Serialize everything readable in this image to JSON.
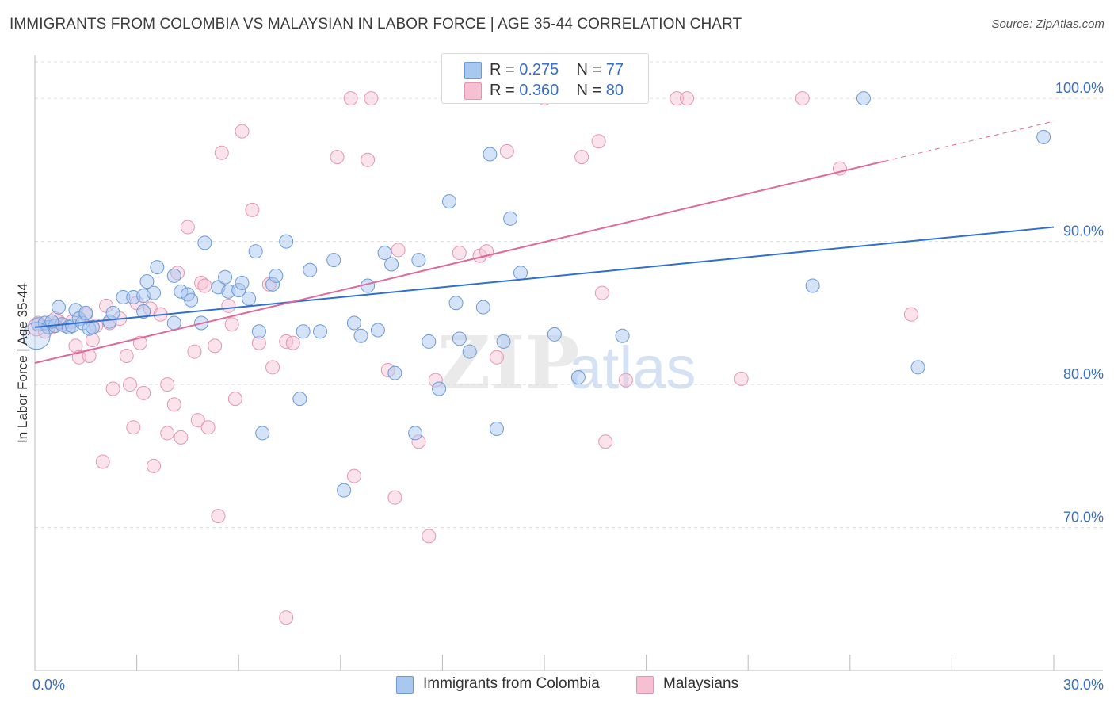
{
  "title": "IMMIGRANTS FROM COLOMBIA VS MALAYSIAN IN LABOR FORCE | AGE 35-44 CORRELATION CHART",
  "source": "Source: ZipAtlas.com",
  "watermark": {
    "zip": "ZIP",
    "atlas": "atlas"
  },
  "legend_top": [
    {
      "r_label": "R =",
      "r_value": "0.275",
      "n_label": "N =",
      "n_value": "77"
    },
    {
      "r_label": "R =",
      "r_value": "0.360",
      "n_label": "N =",
      "n_value": "80"
    }
  ],
  "legend_bottom": [
    "Immigrants from Colombia",
    "Malaysians"
  ],
  "colors": {
    "blue_fill": "#a9c8f0",
    "blue_stroke": "#6b9ad8",
    "blue_line": "#2f6fcf",
    "pink_fill": "#f6c0d2",
    "pink_stroke": "#e595b3",
    "pink_line": "#e0689a",
    "tick_label": "#3a6fc4",
    "grid": "#dddddd"
  },
  "chart_data": {
    "type": "scatter",
    "title": "IMMIGRANTS FROM COLOMBIA VS MALAYSIAN IN LABOR FORCE | AGE 35-44 CORRELATION CHART",
    "xlabel": "",
    "ylabel": "In Labor Force | Age 35-44",
    "xlim": [
      0,
      30
    ],
    "ylim": [
      60,
      103
    ],
    "x_tick_labels": [
      "0.0%",
      "30.0%"
    ],
    "y_ticks": [
      70,
      80,
      90,
      100
    ],
    "y_tick_labels": [
      "70.0%",
      "80.0%",
      "90.0%",
      "100.0%"
    ],
    "series": [
      {
        "name": "Immigrants from Colombia",
        "R": 0.275,
        "N": 77,
        "trend": {
          "x0": 0,
          "y0": 84.0,
          "x1": 30,
          "y1": 91.0
        },
        "points": [
          [
            0.1,
            84.2
          ],
          [
            0.3,
            84.3
          ],
          [
            0.4,
            84.0
          ],
          [
            0.6,
            84.1
          ],
          [
            0.8,
            84.2
          ],
          [
            1.0,
            84.0
          ],
          [
            1.1,
            84.1
          ],
          [
            1.2,
            85.2
          ],
          [
            1.3,
            84.6
          ],
          [
            1.4,
            84.3
          ],
          [
            1.6,
            83.9
          ],
          [
            1.7,
            84.0
          ],
          [
            0.5,
            84.4
          ],
          [
            0.7,
            85.4
          ],
          [
            1.5,
            85.0
          ],
          [
            2.2,
            84.4
          ],
          [
            2.3,
            85.0
          ],
          [
            2.6,
            86.1
          ],
          [
            2.9,
            86.1
          ],
          [
            3.2,
            86.2
          ],
          [
            3.3,
            87.2
          ],
          [
            3.5,
            86.4
          ],
          [
            3.2,
            85.1
          ],
          [
            3.6,
            88.2
          ],
          [
            4.1,
            84.3
          ],
          [
            4.1,
            87.6
          ],
          [
            4.3,
            86.5
          ],
          [
            4.5,
            86.3
          ],
          [
            4.6,
            85.9
          ],
          [
            4.9,
            84.3
          ],
          [
            5.0,
            89.9
          ],
          [
            5.4,
            86.8
          ],
          [
            5.6,
            87.5
          ],
          [
            5.7,
            86.5
          ],
          [
            6.0,
            86.6
          ],
          [
            6.1,
            87.1
          ],
          [
            6.3,
            86.0
          ],
          [
            6.5,
            89.3
          ],
          [
            6.6,
            83.7
          ],
          [
            6.7,
            76.6
          ],
          [
            7.0,
            87.0
          ],
          [
            7.1,
            87.6
          ],
          [
            7.4,
            90.0
          ],
          [
            7.8,
            79.0
          ],
          [
            7.9,
            83.7
          ],
          [
            8.1,
            88.0
          ],
          [
            8.4,
            83.7
          ],
          [
            8.8,
            88.7
          ],
          [
            9.1,
            72.6
          ],
          [
            9.4,
            84.3
          ],
          [
            9.6,
            83.4
          ],
          [
            9.8,
            86.9
          ],
          [
            10.1,
            83.8
          ],
          [
            10.3,
            89.2
          ],
          [
            10.5,
            88.4
          ],
          [
            10.6,
            80.8
          ],
          [
            11.2,
            76.6
          ],
          [
            11.3,
            88.7
          ],
          [
            11.6,
            83.0
          ],
          [
            11.9,
            79.7
          ],
          [
            12.2,
            92.8
          ],
          [
            12.4,
            85.7
          ],
          [
            12.5,
            83.2
          ],
          [
            12.8,
            82.3
          ],
          [
            13.2,
            85.4
          ],
          [
            13.4,
            96.1
          ],
          [
            13.6,
            76.9
          ],
          [
            13.8,
            83.0
          ],
          [
            14.0,
            91.6
          ],
          [
            14.3,
            87.8
          ],
          [
            15.3,
            83.5
          ],
          [
            16.0,
            80.5
          ],
          [
            17.3,
            83.4
          ],
          [
            22.9,
            86.9
          ],
          [
            24.4,
            100.0
          ],
          [
            26.0,
            81.2
          ],
          [
            29.7,
            97.3
          ]
        ]
      },
      {
        "name": "Malaysians",
        "R": 0.36,
        "N": 80,
        "trend": {
          "x0": 0,
          "y0": 81.5,
          "x1": 25.0,
          "y1": 95.6
        },
        "trend_ext": {
          "x0": 25.0,
          "y0": 95.6,
          "x1": 30,
          "y1": 98.4
        },
        "points": [
          [
            0.1,
            84.3
          ],
          [
            0.3,
            83.7
          ],
          [
            0.5,
            84.0
          ],
          [
            0.7,
            84.4
          ],
          [
            0.9,
            84.1
          ],
          [
            1.1,
            84.4
          ],
          [
            1.2,
            82.7
          ],
          [
            1.3,
            81.9
          ],
          [
            1.5,
            84.9
          ],
          [
            1.6,
            82.0
          ],
          [
            1.7,
            83.1
          ],
          [
            1.8,
            84.1
          ],
          [
            0.6,
            84.6
          ],
          [
            2.1,
            85.5
          ],
          [
            2.2,
            84.3
          ],
          [
            2.3,
            79.7
          ],
          [
            2.5,
            84.6
          ],
          [
            2.7,
            82.0
          ],
          [
            2.8,
            80.0
          ],
          [
            2.9,
            77.0
          ],
          [
            2.0,
            74.6
          ],
          [
            3.0,
            85.7
          ],
          [
            3.2,
            79.4
          ],
          [
            3.1,
            82.9
          ],
          [
            3.4,
            85.3
          ],
          [
            3.5,
            74.3
          ],
          [
            3.7,
            84.9
          ],
          [
            3.9,
            76.6
          ],
          [
            3.9,
            80.0
          ],
          [
            4.1,
            78.6
          ],
          [
            4.2,
            87.8
          ],
          [
            4.3,
            76.3
          ],
          [
            4.5,
            91.0
          ],
          [
            4.7,
            82.3
          ],
          [
            4.8,
            77.5
          ],
          [
            4.9,
            87.1
          ],
          [
            5.0,
            86.9
          ],
          [
            5.1,
            77.0
          ],
          [
            5.3,
            82.7
          ],
          [
            5.4,
            70.8
          ],
          [
            5.5,
            96.2
          ],
          [
            5.7,
            85.5
          ],
          [
            5.8,
            84.2
          ],
          [
            5.9,
            79.0
          ],
          [
            6.1,
            97.7
          ],
          [
            6.4,
            92.2
          ],
          [
            6.6,
            82.9
          ],
          [
            6.9,
            87.0
          ],
          [
            7.0,
            81.2
          ],
          [
            7.4,
            83.0
          ],
          [
            7.6,
            82.9
          ],
          [
            7.4,
            63.7
          ],
          [
            8.9,
            95.9
          ],
          [
            9.3,
            100.0
          ],
          [
            9.4,
            73.6
          ],
          [
            9.8,
            95.7
          ],
          [
            9.9,
            100.0
          ],
          [
            10.4,
            81.0
          ],
          [
            10.6,
            72.1
          ],
          [
            10.7,
            89.4
          ],
          [
            11.3,
            76.0
          ],
          [
            11.6,
            69.4
          ],
          [
            11.8,
            80.3
          ],
          [
            12.5,
            89.2
          ],
          [
            13.1,
            89.0
          ],
          [
            13.3,
            89.3
          ],
          [
            13.6,
            81.9
          ],
          [
            13.9,
            96.3
          ],
          [
            15.0,
            100.0
          ],
          [
            16.1,
            95.9
          ],
          [
            16.6,
            97.0
          ],
          [
            16.7,
            86.4
          ],
          [
            16.8,
            76.0
          ],
          [
            17.4,
            80.3
          ],
          [
            18.9,
            100.0
          ],
          [
            19.2,
            100.0
          ],
          [
            20.8,
            80.4
          ],
          [
            22.6,
            100.0
          ],
          [
            23.7,
            95.1
          ],
          [
            25.8,
            84.9
          ]
        ]
      }
    ]
  }
}
